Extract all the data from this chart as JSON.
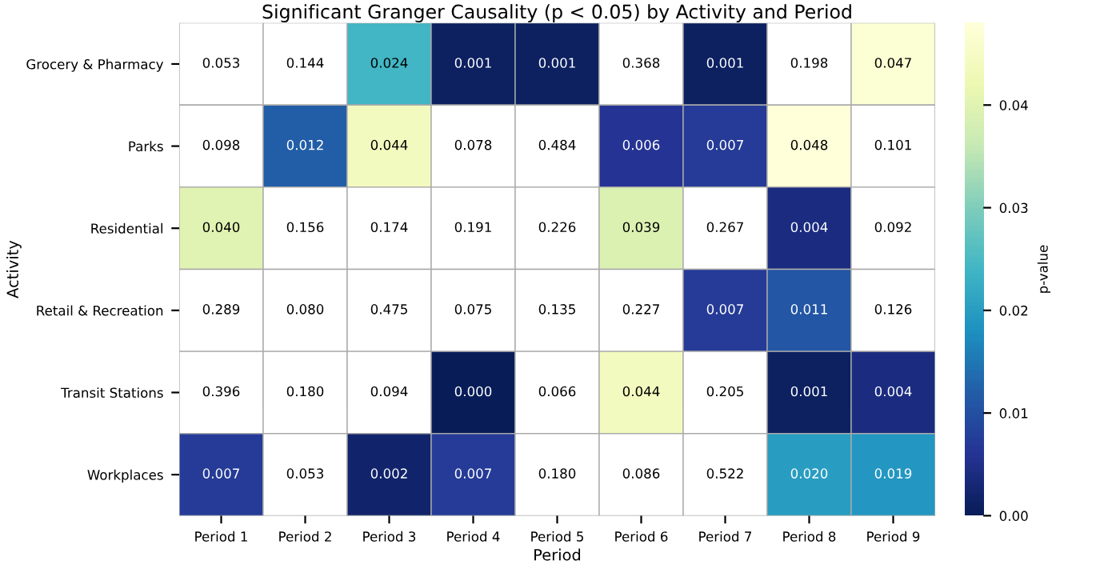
{
  "chart_data": {
    "type": "heatmap",
    "title": "Significant Granger Causality (p < 0.05) by Activity and Period",
    "xlabel": "Period",
    "ylabel": "Activity",
    "clabel": "p-value",
    "categories": [
      "Period 1",
      "Period 2",
      "Period 3",
      "Period 4",
      "Period 5",
      "Period 6",
      "Period 7",
      "Period 8",
      "Period 9"
    ],
    "y_categories": [
      "Grocery & Pharmacy",
      "Parks",
      "Residential",
      "Retail & Recreation",
      "Transit Stations",
      "Workplaces"
    ],
    "cells": [
      [
        null,
        null,
        0.024,
        0.001,
        0.001,
        null,
        0.001,
        null,
        0.047
      ],
      [
        null,
        0.012,
        0.044,
        null,
        null,
        0.006,
        0.007,
        0.048,
        null
      ],
      [
        0.04,
        null,
        null,
        null,
        null,
        0.039,
        null,
        0.004,
        null
      ],
      [
        null,
        null,
        null,
        null,
        null,
        null,
        0.007,
        0.011,
        null
      ],
      [
        null,
        null,
        null,
        0.0,
        null,
        0.044,
        null,
        0.001,
        0.004
      ],
      [
        0.007,
        null,
        0.002,
        0.007,
        null,
        null,
        null,
        0.02,
        0.019
      ]
    ],
    "cell_labels": [
      [
        "0.053",
        "0.144",
        "0.024",
        "0.001",
        "0.001",
        "0.368",
        "0.001",
        "0.198",
        "0.047"
      ],
      [
        "0.098",
        "0.012",
        "0.044",
        "0.078",
        "0.484",
        "0.006",
        "0.007",
        "0.048",
        "0.101"
      ],
      [
        "0.040",
        "0.156",
        "0.174",
        "0.191",
        "0.226",
        "0.039",
        "0.267",
        "0.004",
        "0.092"
      ],
      [
        "0.289",
        "0.080",
        "0.475",
        "0.075",
        "0.135",
        "0.227",
        "0.007",
        "0.011",
        "0.126"
      ],
      [
        "0.396",
        "0.180",
        "0.094",
        "0.000",
        "0.066",
        "0.044",
        "0.205",
        "0.001",
        "0.004"
      ],
      [
        "0.007",
        "0.053",
        "0.002",
        "0.007",
        "0.180",
        "0.086",
        "0.522",
        "0.020",
        "0.019"
      ]
    ],
    "clim": [
      0,
      0.048
    ],
    "cticks": [
      {
        "value": 0,
        "label": "0.00"
      },
      {
        "value": 0.01,
        "label": "0.01"
      },
      {
        "value": 0.02,
        "label": "0.02"
      },
      {
        "value": 0.03,
        "label": "0.03"
      },
      {
        "value": 0.04,
        "label": "0.04"
      }
    ]
  }
}
